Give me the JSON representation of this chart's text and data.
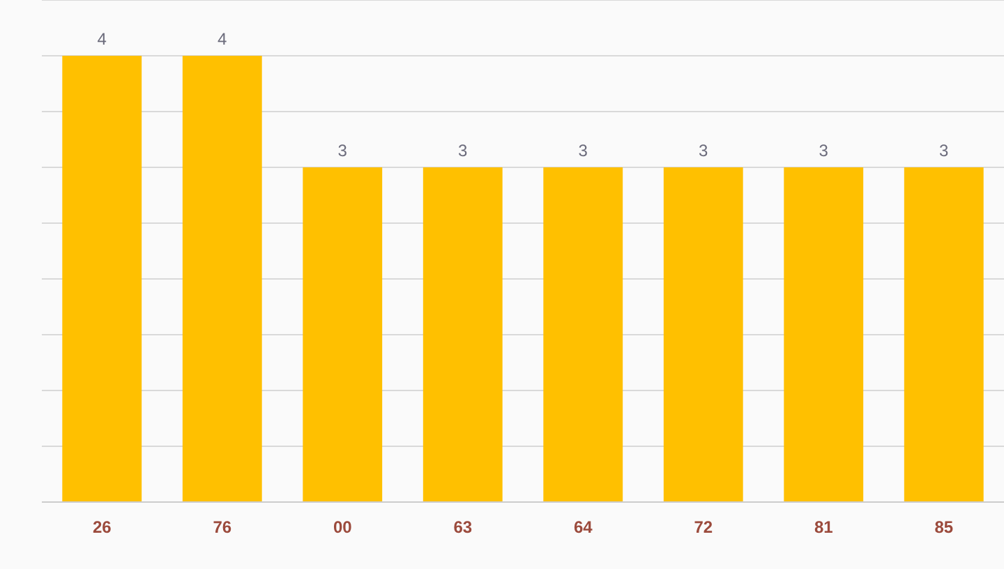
{
  "chart_data": {
    "type": "bar",
    "categories": [
      "26",
      "76",
      "00",
      "63",
      "64",
      "72",
      "81",
      "85"
    ],
    "values": [
      4,
      4,
      3,
      3,
      3,
      3,
      3,
      3
    ],
    "color": "#ffc000",
    "data_labels": true,
    "ylim": [
      0,
      4.5
    ],
    "yticks": [
      {
        "value": 0,
        "label": null
      },
      {
        "value": 0.5,
        "label": null
      },
      {
        "value": 1,
        "label": null
      },
      {
        "value": 1.5,
        "label": null
      },
      {
        "value": 2,
        "label": null
      },
      {
        "value": 2.5,
        "label": null
      },
      {
        "value": 3,
        "label": null
      },
      {
        "value": 3.5,
        "label": null
      },
      {
        "value": 4,
        "label": null
      },
      {
        "value": 4.5,
        "label": null
      }
    ],
    "grid": "y",
    "tick_labels": "x"
  }
}
